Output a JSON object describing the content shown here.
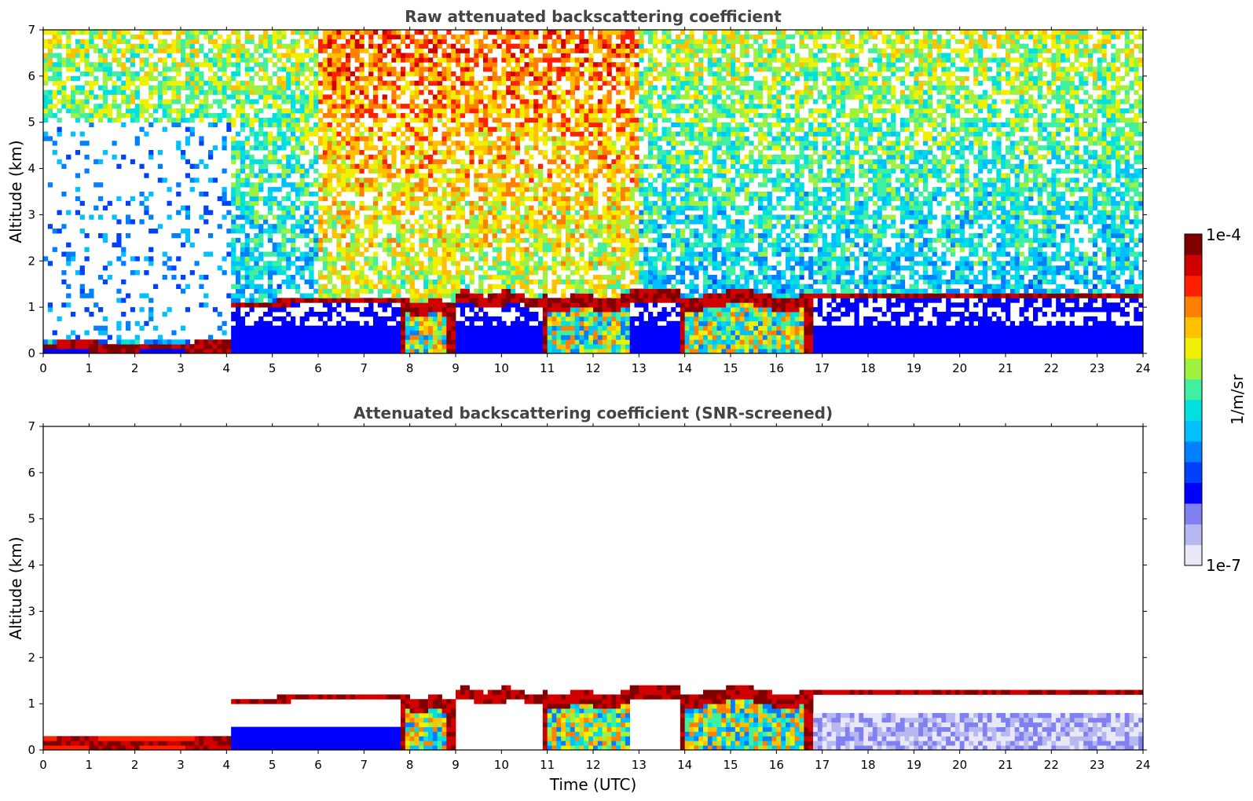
{
  "chart_data": [
    {
      "type": "heatmap",
      "title": "Raw attenuated backscattering coefficient",
      "xlabel": "",
      "ylabel": "Altitude (km)",
      "xlim": [
        0,
        24
      ],
      "ylim": [
        0,
        7
      ],
      "xticks": [
        "0",
        "1",
        "2",
        "3",
        "4",
        "5",
        "6",
        "7",
        "8",
        "9",
        "10",
        "11",
        "12",
        "13",
        "14",
        "15",
        "16",
        "17",
        "18",
        "19",
        "20",
        "21",
        "22",
        "23",
        "24"
      ],
      "yticks": [
        "0",
        "1",
        "2",
        "3",
        "4",
        "5",
        "6",
        "7"
      ],
      "cloud_base_km": [
        {
          "t": 0,
          "base": 0.0,
          "top": 0.25
        },
        {
          "t": 4,
          "base": 0.1,
          "top": 0.3
        },
        {
          "t": 4.2,
          "base": 0.95,
          "top": 1.15
        },
        {
          "t": 6,
          "base": 1.15,
          "top": 1.25
        },
        {
          "t": 8,
          "base": 0.0,
          "top": 1.2
        },
        {
          "t": 9,
          "base": 1.1,
          "top": 1.3
        },
        {
          "t": 10.5,
          "base": 1.2,
          "top": 1.4
        },
        {
          "t": 11,
          "base": 0.0,
          "top": 1.3
        },
        {
          "t": 13,
          "base": 1.2,
          "top": 1.35
        },
        {
          "t": 15.5,
          "base": 1.25,
          "top": 1.45
        },
        {
          "t": 17,
          "base": 1.2,
          "top": 1.3
        },
        {
          "t": 24,
          "base": 1.2,
          "top": 1.3
        }
      ]
    },
    {
      "type": "heatmap",
      "title": "Attenuated backscattering coefficient (SNR-screened)",
      "xlabel": "Time (UTC)",
      "ylabel": "Altitude (km)",
      "xlim": [
        0,
        24
      ],
      "ylim": [
        0,
        7
      ],
      "xticks": [
        "0",
        "1",
        "2",
        "3",
        "4",
        "5",
        "6",
        "7",
        "8",
        "9",
        "10",
        "11",
        "12",
        "13",
        "14",
        "15",
        "16",
        "17",
        "18",
        "19",
        "20",
        "21",
        "22",
        "23",
        "24"
      ],
      "yticks": [
        "0",
        "1",
        "2",
        "3",
        "4",
        "5",
        "6",
        "7"
      ]
    }
  ],
  "colorbar": {
    "label": "1/m/sr",
    "max_label": "1e-4",
    "min_label": "1e-7",
    "colors": [
      "#e8e8f8",
      "#b8b8f0",
      "#8080f0",
      "#0000ff",
      "#0040ff",
      "#0080ff",
      "#00c0ff",
      "#00e0e0",
      "#40f0a0",
      "#a0f040",
      "#f0f000",
      "#ffc000",
      "#ff8000",
      "#ff2000",
      "#d00000",
      "#800000"
    ]
  }
}
